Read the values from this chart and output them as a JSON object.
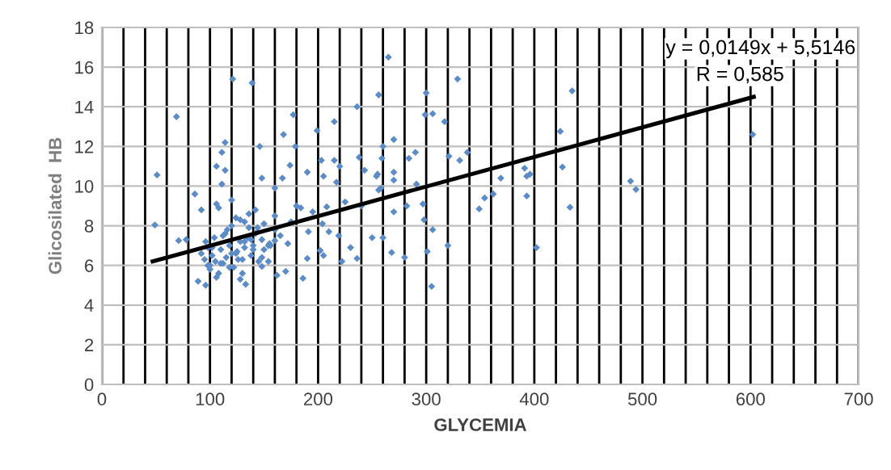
{
  "chart_data": {
    "type": "scatter",
    "xlabel": "GLYCEMIA",
    "ylabel": "Glicosilated  HB",
    "annotations": [
      "y = 0,0149x + 5,5146",
      "R = 0,585"
    ],
    "xlim": [
      0,
      700
    ],
    "xticks": [
      0,
      {
        "value": 20,
        "label": null
      },
      {
        "value": 40,
        "label": null
      },
      {
        "value": 60,
        "label": null
      },
      {
        "value": 80,
        "label": null
      },
      100,
      {
        "value": 120,
        "label": null
      },
      {
        "value": 140,
        "label": null
      },
      {
        "value": 160,
        "label": null
      },
      {
        "value": 180,
        "label": null
      },
      200,
      {
        "value": 220,
        "label": null
      },
      {
        "value": 240,
        "label": null
      },
      {
        "value": 260,
        "label": null
      },
      {
        "value": 280,
        "label": null
      },
      300,
      {
        "value": 320,
        "label": null
      },
      {
        "value": 340,
        "label": null
      },
      {
        "value": 360,
        "label": null
      },
      {
        "value": 380,
        "label": null
      },
      400,
      {
        "value": 420,
        "label": null
      },
      {
        "value": 440,
        "label": null
      },
      {
        "value": 460,
        "label": null
      },
      {
        "value": 480,
        "label": null
      },
      500,
      {
        "value": 520,
        "label": null
      },
      {
        "value": 540,
        "label": null
      },
      {
        "value": 560,
        "label": null
      },
      {
        "value": 580,
        "label": null
      },
      600,
      {
        "value": 620,
        "label": null
      },
      {
        "value": 640,
        "label": null
      },
      {
        "value": 660,
        "label": null
      },
      {
        "value": 680,
        "label": null
      },
      700
    ],
    "ylim": [
      0,
      18
    ],
    "yticks": [
      0,
      2,
      4,
      6,
      8,
      10,
      12,
      14,
      16,
      18
    ],
    "grid": true,
    "marker": "diamond",
    "series": [
      {
        "color": "#5b8cc8",
        "x": [
          49,
          51,
          69,
          121,
          139,
          177,
          199,
          215,
          236,
          256,
          265,
          300,
          299,
          306,
          329,
          317,
          435,
          424,
          426,
          433,
          489,
          494,
          402,
          305,
          301,
          320,
          280,
          268,
          260,
          349,
          354,
          362,
          369,
          391,
          393,
          396,
          393,
          321,
          331,
          338,
          284,
          290,
          270,
          260,
          259,
          291,
          297,
          298,
          306,
          282,
          270,
          270,
          270,
          254,
          256,
          250,
          602,
          168,
          179,
          146,
          114,
          111,
          106,
          114,
          111,
          86,
          106,
          92,
          71,
          78,
          148,
          167,
          174,
          160,
          203,
          215,
          190,
          205,
          217,
          220,
          238,
          243,
          255,
          258,
          225,
          208,
          240,
          204,
          219,
          202,
          205,
          222,
          236,
          190,
          186,
          184,
          175,
          191,
          160,
          154,
          148,
          133,
          128,
          96,
          89,
          95,
          98,
          100,
          102,
          105,
          108,
          110,
          112,
          115,
          118,
          120,
          122,
          125,
          128,
          130,
          132,
          135,
          138,
          140,
          142,
          145,
          148,
          150,
          155,
          160,
          165,
          170,
          98,
          104,
          110,
          116,
          120,
          124,
          128,
          132,
          136,
          140,
          144,
          150,
          156,
          162,
          100,
          106,
          112,
          118,
          124,
          130,
          136,
          142,
          148,
          154,
          92,
          96,
          102,
          108,
          114,
          120,
          126,
          132,
          138,
          144,
          160,
          172,
          180,
          195,
          210,
          230
        ],
        "values": [
          8.04,
          10.56,
          13.5,
          15.4,
          15.2,
          13.6,
          12.8,
          13.25,
          14.0,
          14.6,
          16.5,
          14.7,
          13.6,
          13.65,
          15.4,
          13.25,
          14.8,
          12.76,
          10.96,
          8.93,
          10.25,
          9.83,
          6.9,
          4.94,
          6.7,
          7.0,
          6.4,
          6.65,
          7.4,
          8.85,
          9.4,
          9.6,
          10.4,
          10.9,
          10.5,
          10.6,
          9.5,
          11.5,
          11.3,
          11.7,
          11.4,
          11.7,
          12.35,
          12.0,
          11.4,
          10.1,
          9.1,
          8.3,
          7.8,
          9.0,
          8.7,
          10.3,
          10.7,
          10.5,
          9.8,
          7.4,
          12.6,
          12.6,
          12.0,
          12.0,
          12.2,
          11.7,
          11.0,
          10.8,
          10.1,
          9.6,
          9.1,
          8.8,
          7.25,
          7.3,
          10.4,
          10.4,
          11.05,
          9.9,
          11.3,
          11.3,
          10.7,
          10.5,
          10.2,
          11.0,
          11.45,
          10.8,
          10.6,
          9.9,
          9.2,
          8.95,
          9.0,
          8.1,
          7.5,
          6.75,
          6.5,
          6.2,
          6.35,
          6.35,
          5.35,
          8.9,
          8.2,
          7.7,
          7.25,
          6.2,
          5.95,
          5.05,
          5.3,
          5.0,
          5.2,
          6.3,
          6.0,
          5.8,
          6.5,
          6.2,
          5.6,
          6.8,
          6.1,
          6.4,
          7.0,
          6.6,
          5.9,
          6.7,
          7.2,
          6.3,
          6.9,
          7.4,
          6.5,
          7.0,
          7.6,
          6.2,
          7.3,
          6.8,
          7.1,
          7.8,
          7.5,
          5.7,
          6.9,
          7.4,
          6.1,
          7.8,
          8.0,
          6.6,
          8.3,
          7.2,
          8.6,
          6.8,
          7.7,
          8.1,
          7.0,
          5.5,
          6.0,
          5.4,
          7.5,
          5.9,
          8.4,
          5.6,
          7.9,
          8.8,
          6.4,
          7.0,
          6.6,
          7.2,
          6.9,
          8.9,
          7.6,
          9.3,
          6.3,
          8.2,
          7.3,
          7.9,
          8.5,
          7.1,
          9.0,
          8.7,
          7.7,
          6.9
        ]
      },
      {
        "color": "#000000",
        "type": "line",
        "marker": "none",
        "x": [
          47,
          603
        ],
        "values": [
          6.2,
          14.5
        ]
      }
    ]
  }
}
